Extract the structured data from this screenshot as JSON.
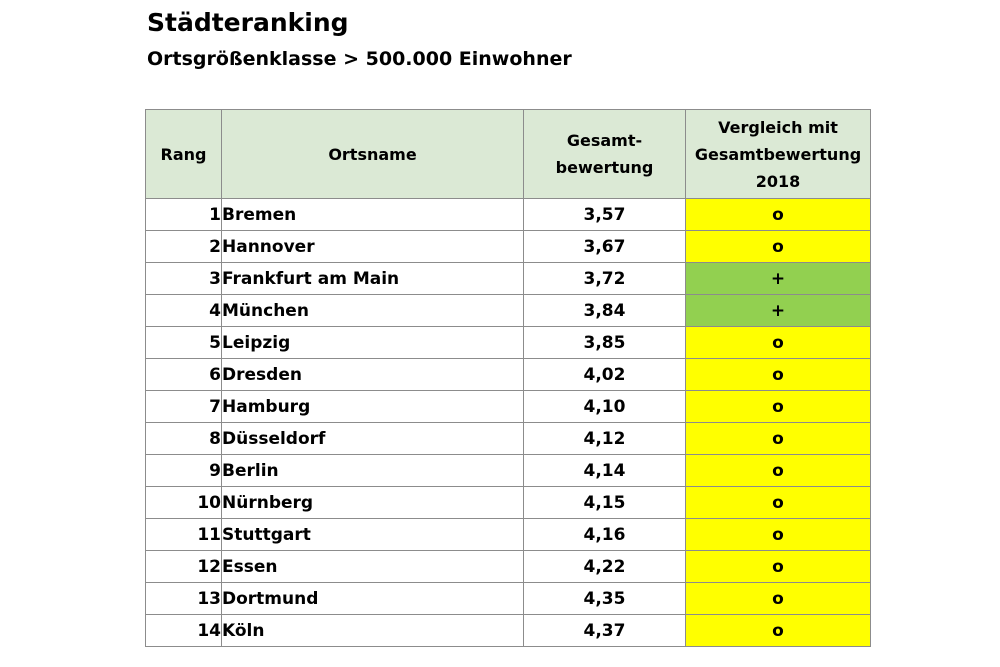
{
  "title": "Städteranking",
  "subtitle": "Ortsgrößenklasse > 500.000 Einwohner",
  "colors": {
    "header_bg": "#dbe9d5",
    "neutral": "#ffff00",
    "plus": "#92d050",
    "border": "#8c8c8c"
  },
  "table": {
    "headers": {
      "rank": "Rang",
      "name": "Ortsname",
      "score_line1": "Gesamt-",
      "score_line2": "bewertung",
      "cmp_line1": "Vergleich mit",
      "cmp_line2": "Gesamtbewertung",
      "cmp_line3": "2018"
    },
    "rows": [
      {
        "rank": "1",
        "name": "Bremen",
        "score": "3,57",
        "cmp": "o"
      },
      {
        "rank": "2",
        "name": "Hannover",
        "score": "3,67",
        "cmp": "o"
      },
      {
        "rank": "3",
        "name": "Frankfurt am Main",
        "score": "3,72",
        "cmp": "+"
      },
      {
        "rank": "4",
        "name": "München",
        "score": "3,84",
        "cmp": "+"
      },
      {
        "rank": "5",
        "name": "Leipzig",
        "score": "3,85",
        "cmp": "o"
      },
      {
        "rank": "6",
        "name": "Dresden",
        "score": "4,02",
        "cmp": "o"
      },
      {
        "rank": "7",
        "name": "Hamburg",
        "score": "4,10",
        "cmp": "o"
      },
      {
        "rank": "8",
        "name": "Düsseldorf",
        "score": "4,12",
        "cmp": "o"
      },
      {
        "rank": "9",
        "name": "Berlin",
        "score": "4,14",
        "cmp": "o"
      },
      {
        "rank": "10",
        "name": "Nürnberg",
        "score": "4,15",
        "cmp": "o"
      },
      {
        "rank": "11",
        "name": "Stuttgart",
        "score": "4,16",
        "cmp": "o"
      },
      {
        "rank": "12",
        "name": "Essen",
        "score": "4,22",
        "cmp": "o"
      },
      {
        "rank": "13",
        "name": "Dortmund",
        "score": "4,35",
        "cmp": "o"
      },
      {
        "rank": "14",
        "name": "Köln",
        "score": "4,37",
        "cmp": "o"
      }
    ]
  }
}
